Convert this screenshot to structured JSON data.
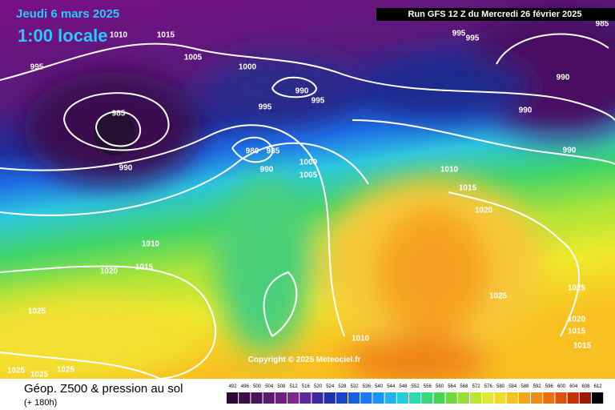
{
  "header": {
    "date": "Jeudi 6 mars 2025",
    "time": "1:00 locale",
    "run": "Run GFS 12 Z du Mercredi 26 février 2025"
  },
  "isobar_labels": [
    "1010",
    "1015",
    "995",
    "1005",
    "1000",
    "985",
    "990",
    "995",
    "995",
    "990",
    "980",
    "985",
    "990",
    "1000",
    "1005",
    "995",
    "995",
    "985",
    "990",
    "990",
    "990",
    "1010",
    "1015",
    "1020",
    "1010",
    "1015",
    "1020",
    "1025",
    "1025",
    "1025",
    "1020",
    "1015",
    "1015",
    "1010",
    "1025",
    "1025",
    "1025"
  ],
  "copyright": "Copyright © 2025 Meteociel.fr",
  "footer": {
    "title": "Géop. Z500 & pression au sol",
    "lead": "(+ 180h)"
  },
  "legend": {
    "scale": [
      492,
      496,
      500,
      504,
      508,
      512,
      516,
      520,
      524,
      528,
      532,
      536,
      540,
      544,
      548,
      552,
      556,
      560,
      564,
      568,
      572,
      576,
      580,
      584,
      588,
      592,
      596,
      600,
      604,
      608,
      612
    ]
  }
}
